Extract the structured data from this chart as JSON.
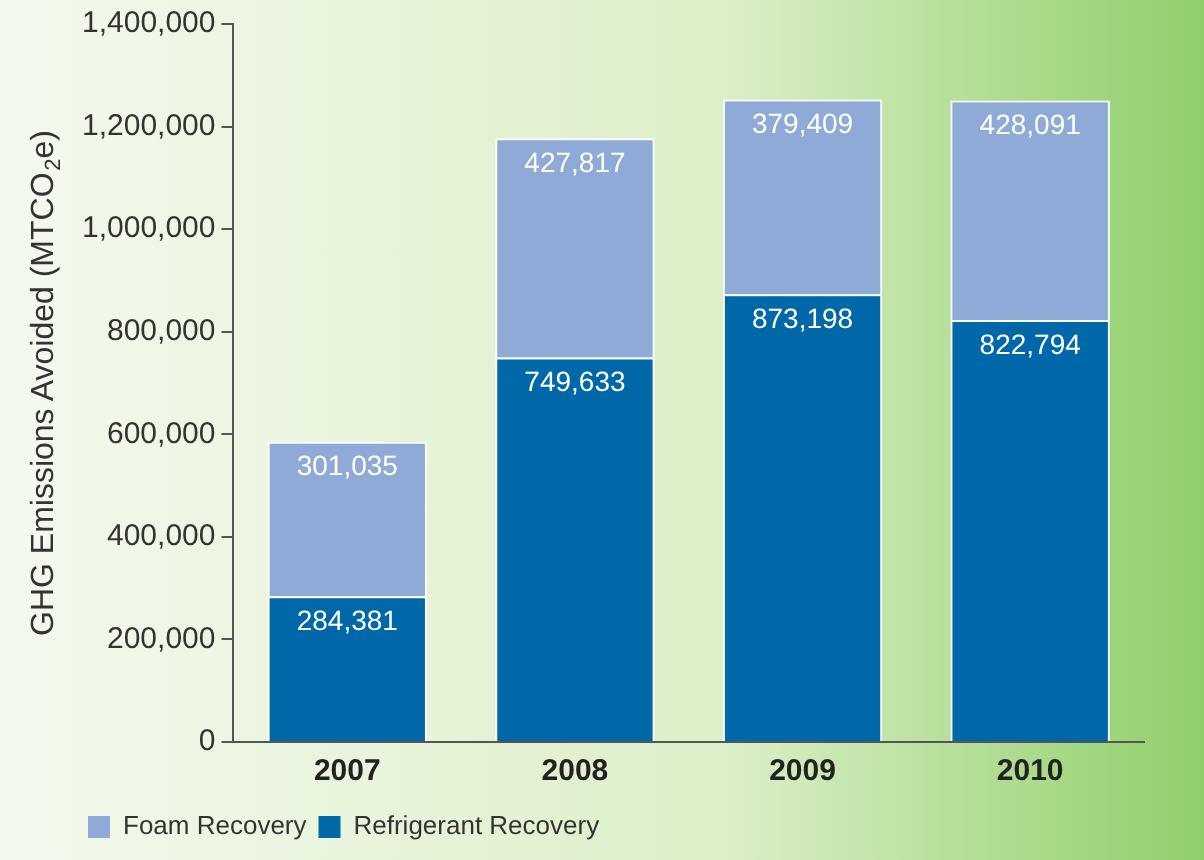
{
  "chart_data": {
    "type": "bar",
    "stacked": true,
    "ylabel": "GHG Emissions Avoided (MTCO$_{2}$e)",
    "categories": [
      "2007",
      "2008",
      "2009",
      "2010"
    ],
    "series": [
      {
        "name": "Refrigerant Recovery",
        "color": "#0067a9",
        "values": [
          284381,
          749633,
          873198,
          822794
        ],
        "value_labels": [
          "284,381",
          "749,633",
          "873,198",
          "822,794"
        ]
      },
      {
        "name": "Foam Recovery",
        "color": "#8faad6",
        "values": [
          301035,
          427817,
          379409,
          428091
        ],
        "value_labels": [
          "301,035",
          "427,817",
          "379,409",
          "428,091"
        ]
      }
    ],
    "ylim": [
      0,
      1400000
    ],
    "yticks": [
      {
        "value": 0,
        "label": "0"
      },
      {
        "value": 200000,
        "label": "200,000"
      },
      {
        "value": 400000,
        "label": "400,000"
      },
      {
        "value": 600000,
        "label": "600,000"
      },
      {
        "value": 800000,
        "label": "800,000"
      },
      {
        "value": 1000000,
        "label": "1,000,000"
      },
      {
        "value": 1200000,
        "label": "1,200,000"
      },
      {
        "value": 1400000,
        "label": "1,400,000"
      }
    ],
    "legend": "bottom",
    "grid": false
  }
}
